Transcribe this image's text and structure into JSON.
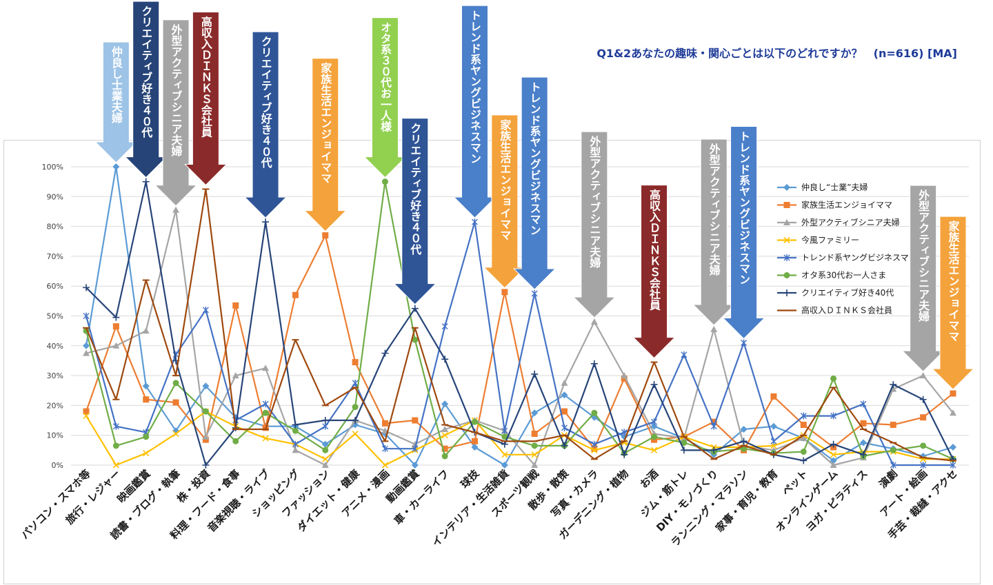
{
  "chart_data": {
    "type": "line",
    "title": "Q1&2あなたの趣味・関心ごとは以下のどれですか？　(n=616) [MA]",
    "ylim": [
      0,
      100
    ],
    "y_ticks": [
      "0%",
      "10%",
      "20%",
      "30%",
      "40%",
      "50%",
      "60%",
      "70%",
      "80%",
      "90%",
      "100%"
    ],
    "grid": true,
    "legend_position": "right",
    "categories": [
      "パソコン・スマホ等",
      "旅行・レジャー",
      "映画鑑賞",
      "読書・ブログ・執筆",
      "株・投資",
      "料理・フード・食事",
      "音楽視聴・ライブ",
      "ショッピング",
      "ファッション",
      "ダイエット・健康",
      "アニメ・漫画",
      "動画鑑賞",
      "車・カーライフ",
      "球技",
      "インテリア・生活雑貨",
      "スポーツ観戦",
      "散歩・散策",
      "写真・カメラ",
      "ガーデニング・植物",
      "お酒",
      "ジム・筋トレ",
      "DIY・モノづくり",
      "ランニング・マラソン",
      "家事・育児・教育",
      "ペット",
      "オンラインゲーム",
      "ヨガ・ピラティス",
      "演劇",
      "アート・絵画",
      "手芸・裁縫・アクセ"
    ],
    "series": [
      {
        "name": "仲良し“士業”夫婦",
        "color": "#5b9bd5",
        "marker": "diamond",
        "values": [
          40,
          100,
          26.5,
          11.5,
          26.5,
          16,
          13,
          13,
          7,
          13.5,
          10.5,
          0,
          20.5,
          6,
          0,
          17.5,
          23.5,
          16,
          9.5,
          13,
          9,
          3.5,
          12,
          13,
          9,
          1.5,
          7.5,
          5.5,
          3,
          6
        ]
      },
      {
        "name": "家族生活エンジョイママ",
        "color": "#ed7d31",
        "marker": "square",
        "values": [
          18,
          46.5,
          22,
          21,
          8.5,
          53.5,
          12.5,
          57,
          77,
          34.5,
          14,
          15,
          5.5,
          8,
          58,
          10.5,
          18,
          5.5,
          29,
          8.5,
          9.5,
          14.5,
          5,
          23,
          13.5,
          6,
          14,
          13.5,
          16,
          24
        ]
      },
      {
        "name": "外型アクティブシニア夫婦",
        "color": "#a5a5a5",
        "marker": "triangle",
        "values": [
          37.5,
          40,
          45,
          85.5,
          9.5,
          30,
          32.5,
          5,
          0,
          15,
          11.5,
          7,
          12,
          15,
          11.5,
          0,
          27.5,
          48,
          30,
          10.5,
          9,
          45.5,
          6.5,
          5,
          9,
          0,
          2.5,
          25.5,
          30,
          17.5
        ]
      },
      {
        "name": "今風ファミリー",
        "color": "#ffc000",
        "marker": "x",
        "values": [
          16.5,
          0,
          4,
          10.5,
          18,
          13,
          9,
          7,
          2,
          10.5,
          0,
          5,
          10,
          15,
          3.5,
          3.5,
          10,
          5,
          7.5,
          5,
          9.5,
          6,
          6,
          6.5,
          10,
          3.5,
          4.5,
          4.5,
          2,
          2
        ]
      },
      {
        "name": "トレンド系ヤングビジネスマン",
        "color": "#4472c4",
        "marker": "star",
        "values": [
          50,
          13,
          11,
          37,
          52,
          15,
          20.5,
          7,
          13,
          27.5,
          5.5,
          5.5,
          46.5,
          81.5,
          11.5,
          57.5,
          12.5,
          7,
          11,
          14.5,
          37,
          13,
          41,
          8,
          16.5,
          16.5,
          20.5,
          0,
          0,
          0
        ]
      },
      {
        "name": "オタ系30代お一人さま",
        "color": "#70ad47",
        "marker": "circle",
        "values": [
          45,
          6.5,
          9.5,
          27.5,
          18,
          8,
          17.5,
          11.5,
          5,
          19.5,
          95,
          42,
          3,
          14.5,
          9.5,
          6.5,
          6.5,
          17.5,
          4,
          9.5,
          7.5,
          4.5,
          5.5,
          4,
          4.5,
          29,
          3,
          5,
          6.5,
          2
        ]
      },
      {
        "name": "クリエイティブ好き40代",
        "color": "#264478",
        "marker": "plus",
        "values": [
          59.5,
          49.5,
          95,
          35,
          0,
          12.5,
          81.5,
          13.5,
          15,
          15,
          37.5,
          52.5,
          35.5,
          11,
          7,
          30.5,
          6.5,
          34,
          3.5,
          27,
          5,
          5,
          8,
          3.5,
          1.5,
          7,
          3.5,
          27,
          22,
          2
        ]
      },
      {
        "name": "高収入ＤＩＮＫＳ会社員",
        "color": "#9e480e",
        "marker": "dash",
        "values": [
          46,
          22,
          62,
          30,
          92.5,
          12,
          12,
          42,
          20,
          26,
          8,
          46,
          13.5,
          11,
          8,
          8,
          10,
          2,
          8,
          34.5,
          9.5,
          2,
          6.5,
          3.5,
          10,
          26,
          12,
          7.5,
          2.5,
          1.5
        ]
      }
    ],
    "callouts": [
      {
        "text": "仲良し士業夫婦",
        "color": "#9dc3e6",
        "category_index": 1
      },
      {
        "text": "クリエイティブ好き４０代",
        "color": "#264478",
        "category_index": 2
      },
      {
        "text": "外型アクティブシニア夫婦",
        "color": "#a5a5a5",
        "category_index": 3
      },
      {
        "text": "高収入ＤＩＮＫＳ会社員",
        "color": "#8b2a2a",
        "category_index": 4
      },
      {
        "text": "クリエイティブ好き４０代",
        "color": "#2f5597",
        "category_index": 6
      },
      {
        "text": "家族生活エンジョイママ",
        "color": "#f4a23b",
        "category_index": 8
      },
      {
        "text": "オタ系３０代お一人様",
        "color": "#92d050",
        "category_index": 10
      },
      {
        "text": "クリエイティブ好き４０代",
        "color": "#2f5597",
        "category_index": 11
      },
      {
        "text": "トレンド系ヤングビジネスマン",
        "color": "#4a7fc9",
        "category_index": 13
      },
      {
        "text": "家族生活エンジョイママ",
        "color": "#f4a23b",
        "category_index": 14
      },
      {
        "text": "トレンド系ヤングビジネスマン",
        "color": "#4a7fc9",
        "category_index": 15
      },
      {
        "text": "外型アクティブシニア夫婦",
        "color": "#a5a5a5",
        "category_index": 17
      },
      {
        "text": "高収入ＤＩＮＫＳ会社員",
        "color": "#8b2a2a",
        "category_index": 19
      },
      {
        "text": "外型アクティブシニア夫婦",
        "color": "#a5a5a5",
        "category_index": 21
      },
      {
        "text": "トレンド系ヤングビジネスマン",
        "color": "#4a7fc9",
        "category_index": 22
      },
      {
        "text": "外型アクティブシニア夫婦",
        "color": "#a5a5a5",
        "category_index": 28
      },
      {
        "text": "家族生活エンジョイママ",
        "color": "#f4a23b",
        "category_index": 29
      }
    ]
  }
}
